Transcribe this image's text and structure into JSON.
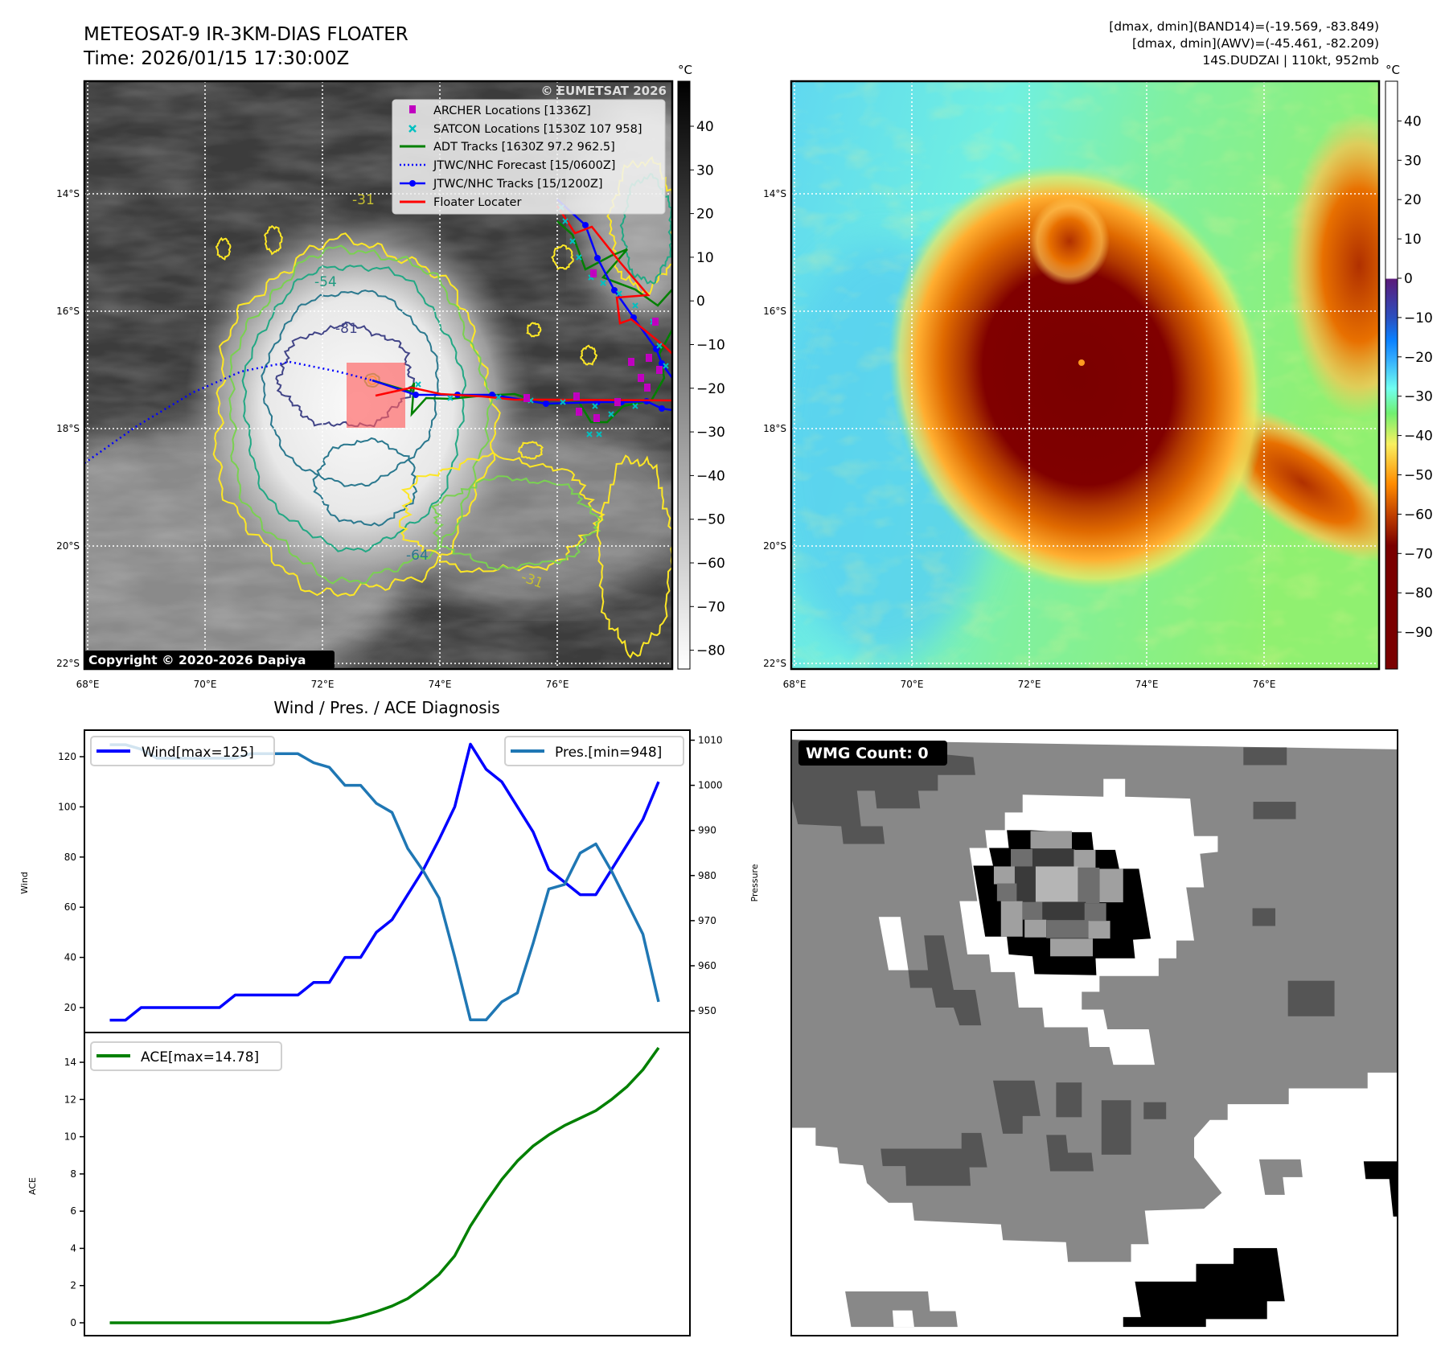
{
  "header": {
    "title_line1": "METEOSAT-9 IR-3KM-DIAS FLOATER",
    "title_line2": "Time: 2026/01/15 17:30:00Z",
    "info_line1": "[dmax, dmin](BAND14)=(-19.569, -83.849)",
    "info_line2": "[dmax, dmin](AWV)=(-45.461, -82.209)",
    "info_line3": "14S.DUDZAI | 110kt, 952mb"
  },
  "ir_map": {
    "lon_labels": [
      "68°E",
      "70°E",
      "72°E",
      "74°E",
      "76°E"
    ],
    "lat_labels": [
      "14°S",
      "16°S",
      "18°S",
      "20°S",
      "22°S"
    ],
    "colorbar_unit": "°C",
    "colorbar_ticks": [
      "40",
      "30",
      "20",
      "10",
      "0",
      "−10",
      "−20",
      "−30",
      "−40",
      "−50",
      "−60",
      "−70",
      "−80"
    ],
    "contour_labels": [
      "-31",
      "-54",
      "-81",
      "-64",
      "-31"
    ],
    "watermark": "© EUMETSAT 2026",
    "copyright": "Copyright © 2020-2026 Dapiya",
    "legend": [
      {
        "label": "ARCHER Locations [1336Z]",
        "color": "#c000c0"
      },
      {
        "label": "SATCON Locations [1530Z 107 958]",
        "color": "#00c0c0"
      },
      {
        "label": "ADT Tracks [1630Z 97.2 962.5]",
        "color": "#008000"
      },
      {
        "label": "JTWC/NHC Forecast [15/0600Z]",
        "color": "#0000ff"
      },
      {
        "label": "JTWC/NHC Tracks [15/1200Z]",
        "color": "#0000ff"
      },
      {
        "label": "Floater Locater",
        "color": "#ff0000"
      }
    ]
  },
  "awv_map": {
    "lon_labels": [
      "68°E",
      "70°E",
      "72°E",
      "74°E",
      "76°E"
    ],
    "lat_labels": [
      "14°S",
      "16°S",
      "18°S",
      "20°S",
      "22°S"
    ],
    "colorbar_unit": "°C",
    "colorbar_ticks": [
      "40",
      "30",
      "20",
      "10",
      "0",
      "−10",
      "−20",
      "−30",
      "−40",
      "−50",
      "−60",
      "−70",
      "−80",
      "−90"
    ]
  },
  "wmg_panel": {
    "badge": "WMG Count: 0"
  },
  "chart_data": {
    "type": "line",
    "title": "Wind / Pres. / ACE Diagnosis",
    "x": [
      0,
      1,
      2,
      3,
      4,
      5,
      6,
      7,
      8,
      9,
      10,
      11,
      12,
      13,
      14,
      15,
      16,
      17,
      18,
      19,
      20,
      21,
      22,
      23,
      24,
      25,
      26,
      27,
      28,
      29,
      30,
      31,
      32,
      33,
      34,
      35
    ],
    "series": [
      {
        "name": "Wind",
        "legend": "Wind[max=125]",
        "axis": "left",
        "color": "#0000ff",
        "values": [
          15,
          15,
          20,
          20,
          20,
          20,
          20,
          20,
          25,
          25,
          25,
          25,
          25,
          30,
          30,
          40,
          40,
          50,
          55,
          65,
          75,
          87,
          100,
          125,
          115,
          110,
          100,
          90,
          75,
          70,
          65,
          65,
          75,
          85,
          95,
          110
        ]
      },
      {
        "name": "Pressure",
        "legend": "Pres.[min=948]",
        "axis": "right",
        "color": "#1f77b4",
        "values": [
          1009,
          1009,
          1008,
          1006,
          1006,
          1006,
          1006,
          1006,
          1006,
          1007,
          1007,
          1007,
          1007,
          1005,
          1004,
          1000,
          1000,
          996,
          994,
          986,
          981,
          975,
          962,
          948,
          948,
          952,
          954,
          965,
          977,
          978,
          985,
          987,
          981,
          974,
          967,
          952
        ]
      },
      {
        "name": "ACE",
        "legend": "ACE[max=14.78]",
        "axis": "lower",
        "color": "#008000",
        "values": [
          0,
          0,
          0,
          0,
          0,
          0,
          0,
          0,
          0,
          0,
          0,
          0,
          0,
          0,
          0,
          0.15,
          0.35,
          0.6,
          0.9,
          1.3,
          1.9,
          2.6,
          3.6,
          5.2,
          6.5,
          7.7,
          8.7,
          9.5,
          10.1,
          10.6,
          11.0,
          11.4,
          12.0,
          12.7,
          13.6,
          14.78
        ]
      }
    ],
    "wind_axis": {
      "label": "Wind",
      "ticks": [
        20,
        40,
        60,
        80,
        100,
        120
      ],
      "ylim": [
        10,
        130.5
      ]
    },
    "pressure_axis": {
      "label": "Pressure",
      "ticks": [
        950,
        960,
        970,
        980,
        990,
        1000,
        1010
      ],
      "ylim": [
        945,
        1012.2
      ]
    },
    "ace_axis": {
      "label": "ACE",
      "ticks": [
        0,
        2,
        4,
        6,
        8,
        10,
        12,
        14
      ],
      "ylim": [
        -0.7,
        15.6
      ]
    }
  }
}
